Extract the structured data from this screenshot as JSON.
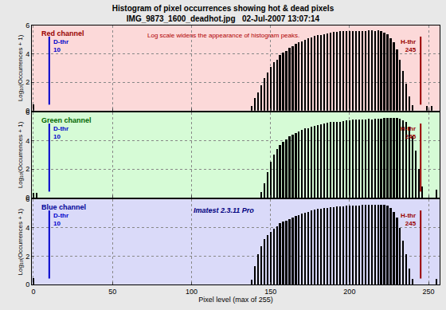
{
  "chart_data": {
    "type": "bar",
    "title": "Histogram of pixel occurrences showing hot & dead pixels",
    "subtitle": "IMG_9873_1600_deadhot.jpg   02-Jul-2007 13:07:14",
    "x_label": "Pixel level (max of 255)",
    "y_label": "Log₁₀(Occurrences + 1)",
    "xlim": [
      -1,
      257
    ],
    "xticks": [
      0,
      50,
      100,
      150,
      200,
      250
    ],
    "ylim": [
      0,
      6
    ],
    "yticks": [
      0,
      2,
      4,
      6
    ],
    "grid": true,
    "thresholds": [
      {
        "label": "D-thr",
        "value": 10,
        "color": "#0000cc"
      },
      {
        "label": "H-thr",
        "value": 245,
        "color": "#990000"
      }
    ],
    "series": [
      {
        "name": "Red channel",
        "color": "#000000",
        "annotation": "Log scale widens the appearance of histogram peaks.",
        "x": [
          0,
          138,
          140,
          142,
          144,
          146,
          148,
          150,
          152,
          154,
          156,
          158,
          160,
          162,
          164,
          166,
          168,
          170,
          172,
          174,
          176,
          178,
          180,
          182,
          184,
          186,
          188,
          190,
          192,
          194,
          196,
          198,
          200,
          202,
          204,
          206,
          208,
          210,
          212,
          214,
          216,
          218,
          220,
          222,
          224,
          226,
          228,
          230,
          232,
          234,
          236,
          238,
          240,
          249,
          252
        ],
        "values": [
          0.45,
          0.3,
          0.9,
          1.3,
          1.8,
          2.3,
          2.7,
          3.1,
          3.4,
          3.6,
          3.9,
          4.1,
          4.2,
          4.4,
          4.55,
          4.7,
          4.8,
          4.9,
          5.0,
          5.1,
          5.15,
          5.25,
          5.3,
          5.35,
          5.4,
          5.45,
          5.5,
          5.55,
          5.55,
          5.6,
          5.6,
          5.6,
          5.6,
          5.6,
          5.6,
          5.6,
          5.6,
          5.6,
          5.65,
          5.65,
          5.6,
          5.65,
          5.6,
          5.5,
          5.4,
          5.1,
          4.8,
          4.3,
          3.6,
          2.8,
          1.9,
          1.0,
          0.4,
          0.3,
          0.35
        ]
      },
      {
        "name": "Green channel",
        "color": "#000000",
        "x": [
          0,
          2,
          144,
          146,
          148,
          150,
          152,
          154,
          156,
          158,
          160,
          162,
          164,
          166,
          168,
          170,
          172,
          174,
          176,
          178,
          180,
          182,
          184,
          186,
          188,
          190,
          192,
          194,
          196,
          198,
          200,
          202,
          204,
          206,
          208,
          210,
          212,
          214,
          216,
          218,
          220,
          222,
          224,
          226,
          228,
          230,
          232,
          234,
          236,
          238,
          240,
          242,
          244,
          246,
          255
        ],
        "values": [
          0.3,
          0.3,
          0.4,
          1.0,
          1.8,
          2.5,
          3.0,
          3.4,
          3.7,
          3.9,
          4.1,
          4.3,
          4.4,
          4.55,
          4.65,
          4.75,
          4.85,
          4.9,
          5.0,
          5.05,
          5.1,
          5.15,
          5.2,
          5.25,
          5.3,
          5.3,
          5.35,
          5.35,
          5.4,
          5.45,
          5.45,
          5.5,
          5.5,
          5.5,
          5.5,
          5.5,
          5.55,
          5.5,
          5.55,
          5.55,
          5.55,
          5.6,
          5.6,
          5.6,
          5.6,
          5.6,
          5.55,
          5.45,
          5.3,
          5.0,
          4.3,
          3.3,
          2.0,
          0.8,
          0.55
        ]
      },
      {
        "name": "Blue channel",
        "color": "#000000",
        "annotation": "Imatest 2.3.11 Pro",
        "x": [
          0,
          138,
          140,
          142,
          144,
          146,
          148,
          150,
          152,
          154,
          156,
          158,
          160,
          162,
          164,
          166,
          168,
          170,
          172,
          174,
          176,
          178,
          180,
          182,
          184,
          186,
          188,
          190,
          192,
          194,
          196,
          198,
          200,
          202,
          204,
          206,
          208,
          210,
          212,
          214,
          216,
          218,
          220,
          222,
          224,
          226,
          228,
          230,
          232,
          234,
          236,
          238,
          240,
          255
        ],
        "values": [
          0.45,
          0.3,
          1.3,
          2.1,
          2.7,
          3.2,
          3.5,
          3.7,
          3.9,
          4.1,
          4.3,
          4.4,
          4.5,
          4.6,
          4.7,
          4.8,
          4.9,
          5.0,
          5.05,
          5.1,
          5.2,
          5.25,
          5.3,
          5.35,
          5.4,
          5.4,
          5.45,
          5.45,
          5.5,
          5.5,
          5.5,
          5.55,
          5.55,
          5.55,
          5.55,
          5.55,
          5.6,
          5.6,
          5.6,
          5.6,
          5.6,
          5.6,
          5.6,
          5.6,
          5.55,
          5.4,
          5.1,
          4.7,
          4.0,
          3.1,
          2.1,
          1.1,
          0.4,
          0.4
        ]
      }
    ]
  }
}
